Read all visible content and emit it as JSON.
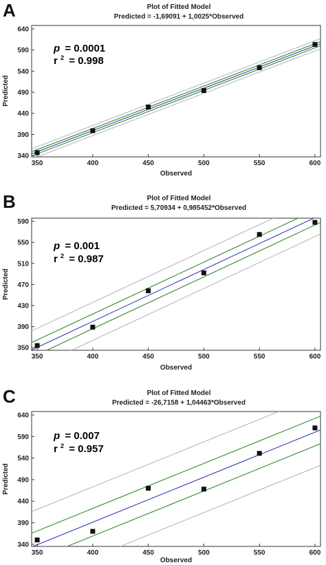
{
  "chart_data": [
    {
      "type": "scatter",
      "panel": "A",
      "title": "Plot of Fitted Model",
      "subtitle": "Predicted = -1,69091 + 1,0025*Observed",
      "xlabel": "Observed",
      "ylabel": "Predicted",
      "xlim": [
        345,
        605
      ],
      "ylim": [
        337,
        648
      ],
      "xticks": [
        350,
        400,
        450,
        500,
        550,
        600
      ],
      "yticks": [
        340,
        390,
        440,
        490,
        540,
        590,
        640
      ],
      "intercept": -1.69091,
      "slope": 1.0025,
      "conf_half_width": 5,
      "pred_half_width": 12,
      "p_label": "p",
      "p_value": "= 0.0001",
      "r2_label": "r",
      "r2_sup": "2",
      "r2_value": "= 0.998",
      "points": [
        {
          "x": 350,
          "y": 347
        },
        {
          "x": 400,
          "y": 399
        },
        {
          "x": 450,
          "y": 455
        },
        {
          "x": 500,
          "y": 494
        },
        {
          "x": 550,
          "y": 548
        },
        {
          "x": 600,
          "y": 603
        }
      ],
      "colors": {
        "fit": "#3a3ab8",
        "confidence": "#2e8b2e",
        "prediction": "#b8b8b8",
        "points": "#111111"
      }
    },
    {
      "type": "scatter",
      "panel": "B",
      "title": "Plot of Fitted Model",
      "subtitle": "Predicted = 5,70934 + 0,985452*Observed",
      "xlabel": "Observed",
      "ylabel": "Predicted",
      "xlim": [
        345,
        605
      ],
      "ylim": [
        345,
        596
      ],
      "xticks": [
        350,
        400,
        450,
        500,
        550,
        600
      ],
      "yticks": [
        350,
        390,
        430,
        470,
        510,
        550,
        590
      ],
      "intercept": 5.70934,
      "slope": 0.985452,
      "conf_half_width": 14,
      "pred_half_width": 36,
      "p_label": "p",
      "p_value": "= 0.001",
      "r2_label": "r",
      "r2_sup": "2",
      "r2_value": "= 0.987",
      "points": [
        {
          "x": 350,
          "y": 354
        },
        {
          "x": 400,
          "y": 389
        },
        {
          "x": 450,
          "y": 458
        },
        {
          "x": 500,
          "y": 492
        },
        {
          "x": 550,
          "y": 565
        },
        {
          "x": 600,
          "y": 588
        }
      ],
      "colors": {
        "fit": "#3a3ab8",
        "confidence": "#2e8b2e",
        "prediction": "#b8b8b8",
        "points": "#111111"
      }
    },
    {
      "type": "scatter",
      "panel": "C",
      "title": "Plot of Fitted Model",
      "subtitle": "Predicted = -26,7158 + 1,04463*Observed",
      "xlabel": "Observed",
      "ylabel": "Predicted",
      "xlim": [
        345,
        605
      ],
      "ylim": [
        335,
        648
      ],
      "xticks": [
        350,
        400,
        450,
        500,
        550,
        600
      ],
      "yticks": [
        340,
        390,
        440,
        490,
        540,
        590,
        640
      ],
      "intercept": -26.7158,
      "slope": 1.04463,
      "conf_half_width": 32,
      "pred_half_width": 82,
      "p_label": "p",
      "p_value": "= 0.007",
      "r2_label": "r",
      "r2_sup": "2",
      "r2_value": "= 0.957",
      "points": [
        {
          "x": 350,
          "y": 350
        },
        {
          "x": 400,
          "y": 370
        },
        {
          "x": 450,
          "y": 470
        },
        {
          "x": 500,
          "y": 468
        },
        {
          "x": 550,
          "y": 551
        },
        {
          "x": 600,
          "y": 610
        }
      ],
      "colors": {
        "fit": "#3a3ab8",
        "confidence": "#2e8b2e",
        "prediction": "#b8b8b8",
        "points": "#111111"
      }
    }
  ]
}
